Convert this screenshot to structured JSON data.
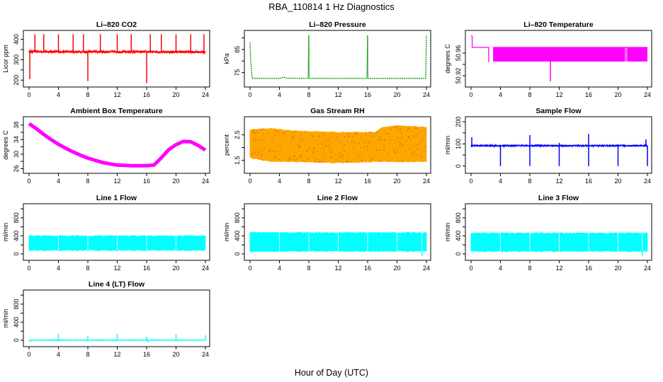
{
  "figure": {
    "suptitle": "RBA_110814  1 Hz Diagnostics",
    "xlabel": "Hour of Day (UTC)"
  },
  "chart_data": [
    {
      "id": "co2",
      "type": "line",
      "title": "Li–820 CO2",
      "ylabel": "Licor ppm",
      "xlim": [
        0,
        24
      ],
      "ylim": [
        180,
        430
      ],
      "xticks": [
        0,
        4,
        8,
        12,
        16,
        20,
        24
      ],
      "yticks": [
        200,
        250,
        300,
        350,
        400
      ],
      "ytick_labels": [
        "200",
        "",
        "300",
        "",
        "400"
      ],
      "color": "#ff0000",
      "style": "noise",
      "base": [
        [
          0,
          340
        ],
        [
          24,
          338
        ]
      ],
      "band": 12,
      "spikes": [
        [
          0.1,
          205
        ],
        [
          0.8,
          425
        ],
        [
          2.0,
          425
        ],
        [
          4.0,
          425
        ],
        [
          6.0,
          425
        ],
        [
          7.4,
          425
        ],
        [
          8.0,
          195
        ],
        [
          9.7,
          425
        ],
        [
          12.0,
          425
        ],
        [
          13.9,
          425
        ],
        [
          16.0,
          185
        ],
        [
          16.5,
          425
        ],
        [
          18.0,
          425
        ],
        [
          20.0,
          425
        ],
        [
          22.0,
          425
        ],
        [
          23.8,
          425
        ]
      ]
    },
    {
      "id": "pressure",
      "type": "line",
      "title": "Li–820 Pressure",
      "ylabel": "kPa",
      "xlim": [
        0,
        24
      ],
      "ylim": [
        70,
        92
      ],
      "xticks": [
        0,
        4,
        8,
        12,
        16,
        20,
        24
      ],
      "yticks": [
        75,
        80,
        85,
        90
      ],
      "ytick_labels": [
        "75",
        "",
        "85",
        ""
      ],
      "color": "#009900",
      "style": "line",
      "dashed": true,
      "points": [
        [
          0,
          88
        ],
        [
          0.1,
          80
        ],
        [
          0.3,
          72.5
        ],
        [
          4,
          72.5
        ],
        [
          4.5,
          73
        ],
        [
          5,
          72.6
        ],
        [
          7.9,
          72.5
        ],
        [
          8,
          91
        ],
        [
          8.05,
          72.5
        ],
        [
          15.9,
          72.5
        ],
        [
          16,
          91
        ],
        [
          16.05,
          72.5
        ],
        [
          23.9,
          72.5
        ],
        [
          24,
          91
        ]
      ]
    },
    {
      "id": "temperature",
      "type": "line",
      "title": "Li–820 Temperature",
      "ylabel": "degrees C",
      "xlim": [
        0,
        24
      ],
      "ylim": [
        50.905,
        50.995
      ],
      "xticks": [
        0,
        4,
        8,
        12,
        16,
        20,
        24
      ],
      "yticks": [
        50.92,
        50.94,
        50.96
      ],
      "ytick_labels": [
        "50.92",
        "",
        "50.96"
      ],
      "color": "#ff00ff",
      "style": "switch",
      "points": [
        [
          0,
          50.99
        ],
        [
          0.15,
          50.99
        ],
        [
          0.15,
          50.97
        ],
        [
          2.4,
          50.97
        ],
        [
          2.4,
          50.945
        ],
        [
          2.5,
          50.945
        ]
      ],
      "block": [
        3.0,
        24,
        50.945,
        50.97
      ],
      "dips": [
        [
          10.8,
          50.91
        ]
      ]
    },
    {
      "id": "ambient",
      "type": "line",
      "title": "Ambient Box Temperature",
      "ylabel": "degrees C",
      "xlim": [
        0,
        24
      ],
      "ylim": [
        25.5,
        39.5
      ],
      "xticks": [
        0,
        4,
        8,
        12,
        16,
        20,
        24
      ],
      "yticks": [
        26,
        28,
        30,
        32,
        34,
        36,
        38
      ],
      "ytick_labels": [
        "26",
        "",
        "30",
        "",
        "34",
        "",
        "38"
      ],
      "color": "#ff00ff",
      "style": "thick",
      "points": [
        [
          0,
          38.4
        ],
        [
          1,
          37
        ],
        [
          2,
          35.4
        ],
        [
          3,
          34
        ],
        [
          4,
          32.7
        ],
        [
          5,
          31.6
        ],
        [
          6,
          30.6
        ],
        [
          7,
          29.7
        ],
        [
          8,
          28.9
        ],
        [
          9,
          28.3
        ],
        [
          10,
          27.7
        ],
        [
          11,
          27.3
        ],
        [
          12,
          27.0
        ],
        [
          13,
          26.9
        ],
        [
          14,
          26.8
        ],
        [
          15,
          26.8
        ],
        [
          16,
          26.8
        ],
        [
          17,
          27.0
        ],
        [
          18,
          29.0
        ],
        [
          19,
          31.2
        ],
        [
          20,
          32.6
        ],
        [
          21,
          33.5
        ],
        [
          22,
          33.4
        ],
        [
          23,
          32.4
        ],
        [
          24,
          31.1
        ]
      ]
    },
    {
      "id": "rh",
      "type": "line",
      "title": "Gas Stream RH",
      "ylabel": "percent",
      "xlim": [
        0,
        24
      ],
      "ylim": [
        1.1,
        3.1
      ],
      "xticks": [
        0,
        4,
        8,
        12,
        16,
        20,
        24
      ],
      "yticks": [
        1.5,
        2.0,
        2.5
      ],
      "ytick_labels": [
        "1.5",
        "",
        "2.5"
      ],
      "color": "#ffa500",
      "style": "band",
      "dotted": true,
      "low": [
        [
          0,
          1.6
        ],
        [
          3,
          1.45
        ],
        [
          6,
          1.45
        ],
        [
          12,
          1.4
        ],
        [
          18,
          1.45
        ],
        [
          24,
          1.45
        ]
      ],
      "high": [
        [
          0,
          2.7
        ],
        [
          3,
          2.75
        ],
        [
          6,
          2.65
        ],
        [
          12,
          2.6
        ],
        [
          17,
          2.6
        ],
        [
          18,
          2.8
        ],
        [
          20,
          2.85
        ],
        [
          24,
          2.8
        ]
      ]
    },
    {
      "id": "sample",
      "type": "line",
      "title": "Sample Flow",
      "ylabel": "ml/min",
      "xlim": [
        0,
        24
      ],
      "ylim": [
        -20,
        210
      ],
      "xticks": [
        0,
        4,
        8,
        12,
        16,
        20,
        24
      ],
      "yticks": [
        0,
        50,
        100,
        150,
        200
      ],
      "ytick_labels": [
        "0",
        "",
        "100",
        "",
        "200"
      ],
      "color": "#0000ff",
      "style": "noise",
      "base": [
        [
          0,
          92
        ],
        [
          24,
          92
        ]
      ],
      "band": 6,
      "spikes": [
        [
          0.1,
          130
        ],
        [
          4,
          0
        ],
        [
          8,
          0
        ],
        [
          8,
          140
        ],
        [
          12,
          0
        ],
        [
          12,
          105
        ],
        [
          16,
          0
        ],
        [
          16,
          145
        ],
        [
          20,
          0
        ],
        [
          24,
          0
        ],
        [
          23.8,
          120
        ]
      ]
    },
    {
      "id": "line1",
      "type": "line",
      "title": "Line 1 Flow",
      "ylabel": "ml/min",
      "xlim": [
        0,
        24
      ],
      "ylim": [
        -80,
        1050
      ],
      "xticks": [
        0,
        4,
        8,
        12,
        16,
        20,
        24
      ],
      "yticks": [
        0,
        200,
        400,
        600,
        800,
        1000
      ],
      "ytick_labels": [
        "0",
        "",
        "400",
        "",
        "800",
        ""
      ],
      "color": "#00ffff",
      "style": "band",
      "lowV": 80,
      "highV": 400,
      "dips": [
        [
          4,
          60
        ],
        [
          8,
          60
        ],
        [
          12,
          60
        ],
        [
          16,
          60
        ],
        [
          20,
          60
        ]
      ]
    },
    {
      "id": "line2",
      "type": "line",
      "title": "Line 2 Flow",
      "ylabel": "ml/min",
      "xlim": [
        0,
        24
      ],
      "ylim": [
        -80,
        1050
      ],
      "xticks": [
        0,
        4,
        8,
        12,
        16,
        20,
        24
      ],
      "yticks": [
        0,
        200,
        400,
        600,
        800,
        1000
      ],
      "ytick_labels": [
        "0",
        "",
        "400",
        "",
        "800",
        ""
      ],
      "color": "#00ffff",
      "style": "band",
      "lowV": 60,
      "highV": 470,
      "dips": [
        [
          4,
          50
        ],
        [
          8,
          50
        ],
        [
          12,
          50
        ],
        [
          16,
          50
        ],
        [
          20,
          50
        ],
        [
          23.4,
          -60
        ]
      ]
    },
    {
      "id": "line3",
      "type": "line",
      "title": "Line 3 Flow",
      "ylabel": "ml/min",
      "xlim": [
        0,
        24
      ],
      "ylim": [
        -80,
        1050
      ],
      "xticks": [
        0,
        4,
        8,
        12,
        16,
        20,
        24
      ],
      "yticks": [
        0,
        200,
        400,
        600,
        800,
        1000
      ],
      "ytick_labels": [
        "0",
        "",
        "400",
        "",
        "800",
        ""
      ],
      "color": "#00ffff",
      "style": "band",
      "lowV": 60,
      "highV": 460,
      "dips": [
        [
          4,
          50
        ],
        [
          8,
          50
        ],
        [
          12,
          50
        ],
        [
          16,
          50
        ],
        [
          20,
          50
        ],
        [
          23.3,
          -60
        ]
      ]
    },
    {
      "id": "line4",
      "type": "line",
      "title": "Line 4 (LT) Flow",
      "ylabel": "ml/min",
      "xlim": [
        0,
        24
      ],
      "ylim": [
        -80,
        1050
      ],
      "xticks": [
        0,
        4,
        8,
        12,
        16,
        20,
        24
      ],
      "yticks": [
        0,
        200,
        400,
        600,
        800,
        1000
      ],
      "ytick_labels": [
        "0",
        "",
        "400",
        "",
        "800",
        ""
      ],
      "color": "#00ffff",
      "style": "noise",
      "base": [
        [
          0,
          0
        ],
        [
          24,
          0
        ]
      ],
      "band": 10,
      "spikes": [
        [
          0.2,
          -40
        ],
        [
          4,
          140
        ],
        [
          8,
          90
        ],
        [
          12,
          140
        ],
        [
          16,
          80
        ],
        [
          16.2,
          -50
        ],
        [
          20,
          140
        ],
        [
          24,
          110
        ]
      ]
    }
  ]
}
